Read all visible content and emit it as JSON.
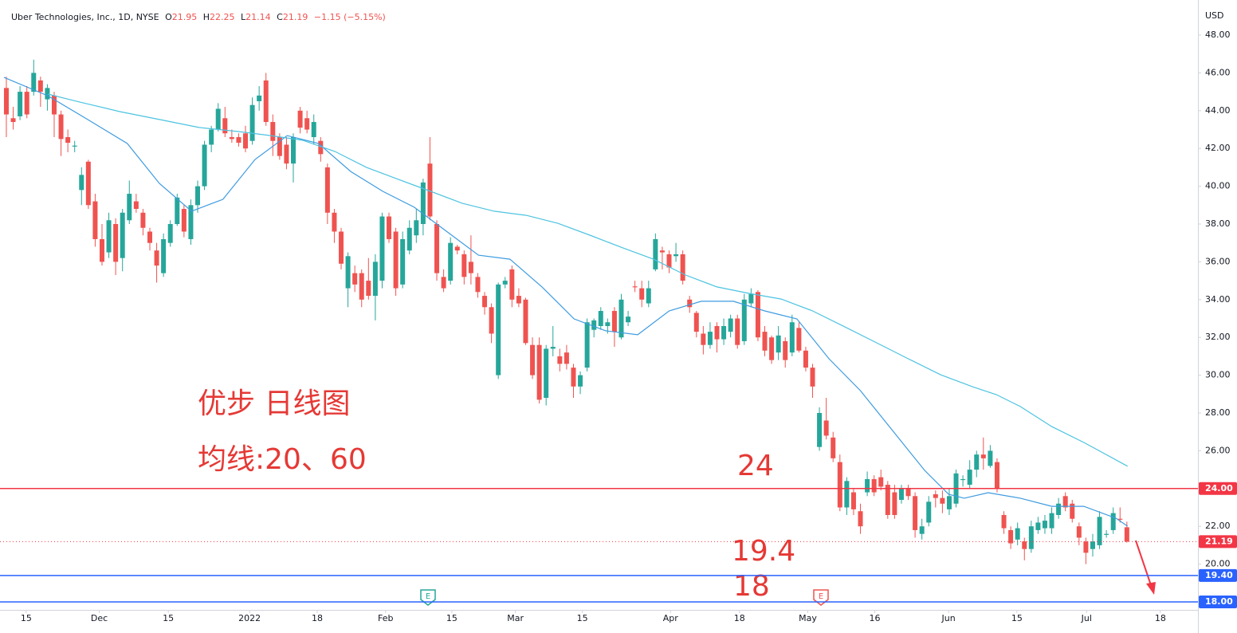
{
  "chart_data": {
    "type": "candlestick",
    "header": {
      "name": "Uber Technologies, Inc., 1D, NYSE",
      "fields": [
        {
          "key": "O",
          "value": "21.95"
        },
        {
          "key": "H",
          "value": "22.25"
        },
        {
          "key": "L",
          "value": "21.14"
        },
        {
          "key": "C",
          "value": "21.19"
        }
      ],
      "change": "−1.15 (−5.15%)"
    },
    "currency": "USD",
    "up_color": "#26a69a",
    "down_color": "#ef5350",
    "ylim": [
      17.578,
      49.857
    ],
    "yticks": [
      {
        "value": 20,
        "label": "20.00"
      },
      {
        "value": 22,
        "label": "22.00"
      },
      {
        "value": 24,
        "label": "24.00"
      },
      {
        "value": 26,
        "label": "26.00"
      },
      {
        "value": 28,
        "label": "28.00"
      },
      {
        "value": 30,
        "label": "30.00"
      },
      {
        "value": 32,
        "label": "32.00"
      },
      {
        "value": 34,
        "label": "34.00"
      },
      {
        "value": 36,
        "label": "36.00"
      },
      {
        "value": 38,
        "label": "38.00"
      },
      {
        "value": 40,
        "label": "40.00"
      },
      {
        "value": 42,
        "label": "42.00"
      },
      {
        "value": 44,
        "label": "44.00"
      },
      {
        "value": 46,
        "label": "46.00"
      },
      {
        "value": 48,
        "label": "48.00"
      }
    ],
    "xlim": [
      -0.93,
      174.4
    ],
    "xticks": [
      {
        "value": 2.9,
        "label": "15"
      },
      {
        "value": 13.6,
        "label": "Dec"
      },
      {
        "value": 23.7,
        "label": "15"
      },
      {
        "value": 35.6,
        "label": "2022"
      },
      {
        "value": 45.5,
        "label": "18"
      },
      {
        "value": 55.5,
        "label": "Feb"
      },
      {
        "value": 65.2,
        "label": "15"
      },
      {
        "value": 74.5,
        "label": "Mar"
      },
      {
        "value": 84.3,
        "label": "15"
      },
      {
        "value": 97.2,
        "label": "Apr"
      },
      {
        "value": 107.3,
        "label": "18"
      },
      {
        "value": 117.3,
        "label": "May"
      },
      {
        "value": 127.1,
        "label": "16"
      },
      {
        "value": 137.9,
        "label": "Jun"
      },
      {
        "value": 147.9,
        "label": "15"
      },
      {
        "value": 158.1,
        "label": "Jul"
      },
      {
        "value": 168.9,
        "label": "18"
      }
    ],
    "ohlc": [
      [
        45.2,
        45.8,
        42.6,
        43.8
      ],
      [
        43.6,
        44.2,
        43.0,
        43.4
      ],
      [
        43.7,
        45.3,
        43.5,
        45.0
      ],
      [
        45.0,
        45.3,
        43.6,
        43.8
      ],
      [
        45.0,
        46.7,
        44.8,
        46.0
      ],
      [
        45.6,
        45.8,
        44.2,
        45.0
      ],
      [
        44.6,
        45.4,
        44.0,
        45.2
      ],
      [
        44.8,
        45.0,
        42.6,
        43.8
      ],
      [
        43.8,
        44.0,
        41.6,
        42.5
      ],
      [
        42.6,
        43.0,
        41.8,
        42.3
      ],
      [
        42.1,
        42.4,
        41.8,
        42.15
      ],
      [
        39.8,
        41.0,
        39.0,
        40.6
      ],
      [
        41.3,
        41.4,
        38.8,
        39.0
      ],
      [
        39.2,
        39.6,
        36.8,
        37.2
      ],
      [
        37.2,
        38.0,
        35.8,
        36.0
      ],
      [
        36.5,
        38.6,
        36.2,
        38.2
      ],
      [
        38.0,
        38.3,
        35.3,
        36.0
      ],
      [
        36.2,
        38.8,
        35.5,
        38.6
      ],
      [
        38.2,
        40.3,
        38.0,
        39.6
      ],
      [
        39.2,
        39.6,
        38.6,
        38.8
      ],
      [
        38.6,
        38.8,
        37.4,
        37.8
      ],
      [
        37.6,
        37.8,
        36.6,
        37.0
      ],
      [
        36.6,
        37.0,
        34.9,
        35.8
      ],
      [
        35.4,
        37.5,
        35.2,
        37.2
      ],
      [
        37.0,
        38.2,
        36.8,
        38.0
      ],
      [
        38.0,
        39.6,
        37.9,
        39.4
      ],
      [
        38.8,
        39.0,
        37.3,
        37.6
      ],
      [
        37.2,
        39.3,
        36.9,
        39.0
      ],
      [
        39.0,
        40.3,
        38.6,
        40.0
      ],
      [
        40.0,
        42.4,
        39.8,
        42.2
      ],
      [
        42.2,
        43.2,
        41.8,
        43.0
      ],
      [
        43.0,
        44.4,
        42.9,
        44.1
      ],
      [
        43.6,
        44.2,
        42.6,
        42.8
      ],
      [
        42.6,
        43.0,
        42.3,
        42.5
      ],
      [
        42.6,
        42.8,
        42.1,
        42.3
      ],
      [
        42.8,
        43.2,
        41.8,
        42.0
      ],
      [
        42.4,
        44.7,
        42.2,
        44.3
      ],
      [
        44.5,
        45.3,
        44.0,
        44.8
      ],
      [
        45.6,
        46.0,
        43.2,
        43.4
      ],
      [
        43.4,
        43.8,
        41.6,
        42.4
      ],
      [
        42.6,
        42.8,
        41.4,
        41.6
      ],
      [
        42.2,
        42.6,
        40.9,
        41.2
      ],
      [
        41.2,
        42.8,
        40.2,
        42.6
      ],
      [
        44.0,
        44.2,
        42.8,
        43.1
      ],
      [
        43.6,
        44.0,
        42.8,
        43.0
      ],
      [
        42.6,
        43.8,
        42.2,
        43.4
      ],
      [
        42.4,
        42.6,
        41.3,
        41.7
      ],
      [
        41.0,
        41.2,
        38.0,
        38.6
      ],
      [
        38.6,
        38.8,
        37.0,
        37.6
      ],
      [
        37.6,
        37.8,
        35.6,
        35.9
      ],
      [
        34.6,
        36.5,
        33.6,
        36.3
      ],
      [
        35.4,
        35.8,
        34.4,
        34.8
      ],
      [
        35.4,
        35.6,
        33.6,
        34.0
      ],
      [
        35.0,
        36.2,
        34.0,
        34.2
      ],
      [
        34.2,
        36.4,
        32.9,
        36.0
      ],
      [
        35.0,
        38.6,
        34.6,
        38.4
      ],
      [
        38.4,
        38.6,
        37.0,
        37.2
      ],
      [
        37.6,
        37.8,
        34.2,
        34.6
      ],
      [
        34.8,
        37.6,
        34.6,
        37.2
      ],
      [
        36.6,
        38.2,
        36.4,
        37.8
      ],
      [
        37.4,
        38.8,
        37.0,
        38.2
      ],
      [
        38.0,
        40.4,
        37.4,
        40.2
      ],
      [
        41.2,
        42.6,
        38.2,
        38.4
      ],
      [
        38.0,
        38.2,
        35.0,
        35.4
      ],
      [
        35.2,
        35.6,
        34.4,
        34.6
      ],
      [
        35.0,
        37.3,
        34.8,
        37.0
      ],
      [
        36.8,
        36.9,
        36.4,
        36.6
      ],
      [
        36.4,
        36.6,
        34.8,
        35.2
      ],
      [
        36.0,
        37.4,
        34.8,
        35.4
      ],
      [
        35.2,
        35.4,
        34.1,
        34.4
      ],
      [
        34.2,
        34.4,
        33.2,
        33.6
      ],
      [
        33.6,
        33.8,
        31.7,
        32.2
      ],
      [
        30.0,
        34.9,
        29.8,
        34.8
      ],
      [
        34.8,
        35.2,
        34.6,
        35.0
      ],
      [
        35.6,
        35.8,
        33.6,
        34.0
      ],
      [
        34.2,
        34.6,
        33.6,
        33.8
      ],
      [
        34.0,
        34.1,
        31.6,
        31.7
      ],
      [
        31.6,
        32.0,
        29.8,
        30.0
      ],
      [
        31.6,
        32.0,
        28.5,
        28.7
      ],
      [
        28.8,
        31.6,
        28.4,
        31.4
      ],
      [
        31.4,
        32.6,
        31.0,
        31.5
      ],
      [
        31.0,
        31.4,
        30.2,
        30.6
      ],
      [
        31.2,
        31.6,
        30.3,
        30.6
      ],
      [
        30.4,
        30.6,
        28.8,
        29.4
      ],
      [
        29.4,
        30.2,
        29.0,
        30.0
      ],
      [
        30.4,
        33.0,
        30.2,
        32.8
      ],
      [
        32.4,
        33.0,
        32.0,
        32.9
      ],
      [
        32.6,
        33.6,
        32.4,
        33.4
      ],
      [
        32.6,
        33.0,
        32.2,
        32.8
      ],
      [
        33.4,
        33.6,
        31.5,
        32.3
      ],
      [
        32.0,
        34.3,
        31.9,
        34.0
      ],
      [
        32.8,
        33.4,
        32.6,
        33.1
      ],
      [
        34.7,
        35.0,
        34.4,
        34.65
      ],
      [
        34.6,
        35.0,
        33.6,
        34.0
      ],
      [
        33.8,
        35.0,
        33.6,
        34.6
      ],
      [
        35.6,
        37.5,
        35.5,
        37.2
      ],
      [
        36.6,
        36.8,
        35.6,
        36.5
      ],
      [
        36.4,
        36.6,
        35.4,
        35.7
      ],
      [
        36.3,
        37.0,
        36.0,
        36.4
      ],
      [
        36.4,
        36.6,
        34.8,
        35.0
      ],
      [
        34.0,
        34.2,
        33.3,
        33.6
      ],
      [
        33.3,
        33.4,
        32.0,
        32.3
      ],
      [
        32.2,
        32.6,
        31.1,
        31.6
      ],
      [
        31.6,
        32.8,
        31.4,
        32.3
      ],
      [
        32.6,
        32.8,
        31.2,
        31.9
      ],
      [
        31.9,
        33.0,
        31.6,
        32.6
      ],
      [
        32.3,
        33.2,
        32.0,
        33.0
      ],
      [
        33.0,
        33.2,
        31.4,
        31.6
      ],
      [
        31.8,
        34.3,
        31.6,
        34.0
      ],
      [
        33.8,
        34.6,
        33.6,
        34.3
      ],
      [
        34.4,
        34.5,
        31.8,
        32.0
      ],
      [
        32.3,
        32.6,
        31.0,
        31.3
      ],
      [
        32.0,
        32.1,
        30.6,
        30.8
      ],
      [
        31.2,
        32.6,
        30.8,
        32.1
      ],
      [
        31.8,
        32.0,
        30.4,
        30.8
      ],
      [
        31.2,
        33.2,
        31.0,
        32.8
      ],
      [
        32.5,
        32.8,
        31.2,
        31.3
      ],
      [
        31.3,
        31.5,
        30.2,
        30.4
      ],
      [
        30.4,
        30.6,
        28.8,
        29.4
      ],
      [
        26.2,
        28.3,
        26.0,
        28.0
      ],
      [
        27.6,
        28.8,
        26.6,
        26.8
      ],
      [
        26.7,
        27.0,
        25.4,
        25.6
      ],
      [
        25.4,
        25.8,
        22.8,
        23.0
      ],
      [
        23.0,
        24.6,
        22.6,
        24.4
      ],
      [
        23.8,
        24.0,
        22.6,
        22.9
      ],
      [
        22.8,
        23.2,
        21.6,
        22.0
      ],
      [
        23.8,
        24.9,
        23.6,
        24.5
      ],
      [
        24.5,
        24.7,
        23.6,
        23.8
      ],
      [
        24.6,
        25.0,
        23.9,
        24.1
      ],
      [
        24.2,
        24.4,
        22.4,
        22.6
      ],
      [
        23.8,
        24.2,
        22.4,
        22.6
      ],
      [
        23.4,
        24.2,
        23.2,
        24.0
      ],
      [
        24.0,
        24.2,
        23.4,
        23.6
      ],
      [
        23.6,
        23.8,
        21.4,
        21.8
      ],
      [
        21.6,
        22.4,
        21.3,
        22.0
      ],
      [
        22.2,
        23.6,
        22.0,
        23.3
      ],
      [
        23.7,
        23.9,
        23.0,
        23.5
      ],
      [
        23.5,
        23.9,
        22.7,
        23.2
      ],
      [
        22.9,
        24.0,
        22.6,
        23.6
      ],
      [
        23.2,
        25.0,
        23.0,
        24.8
      ],
      [
        24.45,
        24.7,
        24.1,
        24.5
      ],
      [
        24.2,
        25.5,
        24.0,
        25.0
      ],
      [
        25.0,
        26.0,
        24.6,
        25.8
      ],
      [
        25.8,
        26.7,
        25.0,
        25.6
      ],
      [
        25.2,
        26.3,
        25.1,
        26.0
      ],
      [
        25.4,
        25.6,
        23.8,
        24.0
      ],
      [
        22.6,
        22.8,
        21.6,
        21.9
      ],
      [
        21.8,
        22.0,
        20.8,
        21.1
      ],
      [
        21.3,
        22.2,
        21.0,
        21.9
      ],
      [
        21.2,
        21.4,
        20.2,
        20.8
      ],
      [
        20.8,
        22.3,
        20.6,
        22.0
      ],
      [
        21.8,
        22.5,
        21.6,
        22.2
      ],
      [
        21.9,
        22.6,
        21.6,
        22.3
      ],
      [
        21.9,
        23.0,
        21.6,
        22.7
      ],
      [
        22.6,
        23.5,
        22.4,
        23.2
      ],
      [
        23.6,
        23.8,
        22.8,
        23.0
      ],
      [
        23.2,
        23.4,
        22.2,
        22.4
      ],
      [
        22.0,
        22.2,
        21.0,
        21.4
      ],
      [
        21.2,
        21.4,
        20.0,
        20.6
      ],
      [
        20.8,
        21.6,
        20.4,
        21.2
      ],
      [
        21.0,
        22.8,
        20.8,
        22.5
      ],
      [
        21.55,
        21.8,
        21.4,
        21.6
      ],
      [
        21.8,
        23.0,
        21.6,
        22.7
      ],
      [
        22.4,
        23.0,
        22.2,
        22.35
      ],
      [
        21.95,
        22.25,
        21.14,
        21.19
      ]
    ],
    "moving_averages": [
      {
        "color": "#3d9be0",
        "x": [
          -0.35,
          6.07,
          11.9,
          17.7,
          22.4,
          27.1,
          31.7,
          36.4,
          41.1,
          45.7,
          50.4,
          55.1,
          59.7,
          64.4,
          69.1,
          73.7,
          78.4,
          83.1,
          87.7,
          92.4,
          97.0,
          101.7,
          106.4,
          111.0,
          115.7,
          120.4,
          125.0,
          129.7,
          134.4,
          137.9,
          140.2,
          143.7,
          148.4,
          153.0,
          157.7,
          162.4,
          164.1
        ],
        "values": [
          45.76,
          44.79,
          43.53,
          42.26,
          40.15,
          38.68,
          39.31,
          41.42,
          42.68,
          42.26,
          40.78,
          39.73,
          38.89,
          37.62,
          36.35,
          36.14,
          34.67,
          32.98,
          32.35,
          32.14,
          33.4,
          33.91,
          33.91,
          33.4,
          32.98,
          30.87,
          29.18,
          27.07,
          24.96,
          23.7,
          23.49,
          23.78,
          23.49,
          23.06,
          23.06,
          22.43,
          22.01
        ]
      },
      {
        "color": "#4cc3e0",
        "x": [
          6.07,
          10.7,
          16.6,
          22.4,
          28.2,
          34.1,
          38.7,
          43.4,
          48.1,
          52.7,
          57.4,
          62.1,
          66.7,
          71.4,
          76.1,
          80.7,
          85.4,
          90.0,
          94.7,
          99.4,
          104.0,
          108.7,
          113.4,
          118.0,
          122.7,
          127.4,
          132.0,
          136.7,
          141.4,
          144.9,
          148.4,
          153.0,
          157.7,
          164.1
        ],
        "values": [
          44.88,
          44.46,
          43.95,
          43.53,
          43.11,
          42.89,
          42.68,
          42.43,
          41.84,
          41.0,
          40.36,
          39.73,
          39.1,
          38.68,
          38.46,
          38.04,
          37.41,
          36.77,
          36.14,
          35.3,
          34.67,
          34.33,
          34.03,
          33.4,
          32.56,
          31.71,
          30.87,
          30.03,
          29.39,
          28.97,
          28.34,
          27.28,
          26.44,
          25.18
        ]
      }
    ],
    "hlines": [
      {
        "value": 24,
        "label": "24.00",
        "color": "#f23645"
      },
      {
        "value": 19.4,
        "label": "19.40",
        "color": "#2962ff"
      },
      {
        "value": 18,
        "label": "18.00",
        "color": "#2962ff"
      }
    ],
    "price_line": {
      "value": 21.19,
      "label": "21.19",
      "color": "#f23645"
    },
    "annotations": [
      "优步 日线图",
      "均线:20、60",
      "24",
      "19.4",
      "18"
    ],
    "earnings_markers": [
      "E",
      "E"
    ]
  }
}
